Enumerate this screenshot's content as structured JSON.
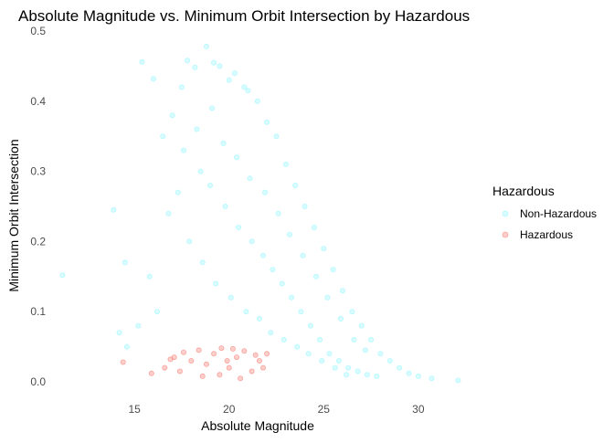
{
  "chart_data": {
    "type": "scatter",
    "title": "Absolute Magnitude vs. Minimum Orbit Intersection by Hazardous",
    "xlabel": "Absolute Magnitude",
    "ylabel": "Minimum Orbit Intersection",
    "xlim": [
      10.6,
      33
    ],
    "ylim": [
      0,
      0.5
    ],
    "x_ticks": [
      15,
      20,
      25,
      30
    ],
    "y_ticks": [
      0.0,
      0.1,
      0.2,
      0.3,
      0.4,
      0.5
    ],
    "x_tick_labels": [
      "15",
      "20",
      "25",
      "30"
    ],
    "y_tick_labels": [
      "0.0",
      "0.1",
      "0.2",
      "0.3",
      "0.4",
      "0.5"
    ],
    "grid": false,
    "point_alpha": 0.35,
    "legend": {
      "title": "Hazardous",
      "position": "right",
      "entries": [
        {
          "label": "Non-Hazardous",
          "color": "#8FF5FF"
        },
        {
          "label": "Hazardous",
          "color": "#F8766D"
        }
      ]
    },
    "series": [
      {
        "name": "Non-Hazardous",
        "color": "#8FF5FF",
        "points": [
          [
            11.2,
            0.152
          ],
          [
            13.9,
            0.245
          ],
          [
            14.5,
            0.17
          ],
          [
            15.4,
            0.456
          ],
          [
            16.0,
            0.432
          ],
          [
            16.5,
            0.35
          ],
          [
            17.0,
            0.38
          ],
          [
            17.5,
            0.42
          ],
          [
            17.8,
            0.458
          ],
          [
            18.2,
            0.448
          ],
          [
            18.8,
            0.478
          ],
          [
            19.2,
            0.455
          ],
          [
            19.5,
            0.45
          ],
          [
            20.0,
            0.43
          ],
          [
            20.3,
            0.44
          ],
          [
            20.8,
            0.42
          ],
          [
            21.0,
            0.415
          ],
          [
            21.5,
            0.4
          ],
          [
            22.0,
            0.37
          ],
          [
            22.5,
            0.35
          ],
          [
            23.0,
            0.31
          ],
          [
            23.5,
            0.28
          ],
          [
            24.0,
            0.25
          ],
          [
            24.5,
            0.22
          ],
          [
            25.0,
            0.19
          ],
          [
            25.5,
            0.16
          ],
          [
            26.0,
            0.13
          ],
          [
            26.5,
            0.1
          ],
          [
            27.0,
            0.08
          ],
          [
            27.5,
            0.06
          ],
          [
            28.0,
            0.04
          ],
          [
            28.5,
            0.03
          ],
          [
            29.0,
            0.02
          ],
          [
            29.5,
            0.012
          ],
          [
            30.0,
            0.008
          ],
          [
            30.7,
            0.005
          ],
          [
            32.1,
            0.002
          ],
          [
            18.5,
            0.3
          ],
          [
            19.0,
            0.28
          ],
          [
            19.8,
            0.25
          ],
          [
            20.5,
            0.22
          ],
          [
            21.2,
            0.2
          ],
          [
            21.8,
            0.18
          ],
          [
            22.3,
            0.16
          ],
          [
            22.8,
            0.14
          ],
          [
            23.3,
            0.12
          ],
          [
            23.8,
            0.1
          ],
          [
            24.3,
            0.08
          ],
          [
            24.8,
            0.06
          ],
          [
            25.3,
            0.04
          ],
          [
            25.8,
            0.03
          ],
          [
            26.3,
            0.02
          ],
          [
            26.8,
            0.015
          ],
          [
            27.3,
            0.01
          ],
          [
            27.8,
            0.008
          ],
          [
            16.8,
            0.24
          ],
          [
            17.3,
            0.27
          ],
          [
            17.9,
            0.2
          ],
          [
            18.6,
            0.17
          ],
          [
            19.3,
            0.14
          ],
          [
            20.1,
            0.12
          ],
          [
            20.9,
            0.1
          ],
          [
            21.6,
            0.09
          ],
          [
            22.2,
            0.07
          ],
          [
            22.9,
            0.06
          ],
          [
            23.6,
            0.05
          ],
          [
            24.2,
            0.04
          ],
          [
            24.9,
            0.03
          ],
          [
            25.6,
            0.02
          ],
          [
            26.2,
            0.01
          ],
          [
            15.8,
            0.15
          ],
          [
            16.2,
            0.1
          ],
          [
            15.2,
            0.08
          ],
          [
            14.6,
            0.05
          ],
          [
            14.2,
            0.07
          ],
          [
            17.6,
            0.33
          ],
          [
            18.3,
            0.36
          ],
          [
            19.1,
            0.39
          ],
          [
            19.7,
            0.34
          ],
          [
            20.4,
            0.32
          ],
          [
            21.1,
            0.29
          ],
          [
            21.9,
            0.27
          ],
          [
            22.6,
            0.24
          ],
          [
            23.2,
            0.21
          ],
          [
            23.9,
            0.18
          ],
          [
            24.6,
            0.15
          ],
          [
            25.2,
            0.12
          ],
          [
            25.9,
            0.09
          ],
          [
            26.6,
            0.06
          ],
          [
            27.2,
            0.045
          ]
        ]
      },
      {
        "name": "Hazardous",
        "color": "#F8766D",
        "points": [
          [
            14.4,
            0.028
          ],
          [
            15.9,
            0.012
          ],
          [
            16.6,
            0.02
          ],
          [
            17.1,
            0.035
          ],
          [
            17.6,
            0.042
          ],
          [
            18.0,
            0.03
          ],
          [
            18.4,
            0.045
          ],
          [
            18.8,
            0.025
          ],
          [
            19.2,
            0.04
          ],
          [
            19.6,
            0.048
          ],
          [
            20.0,
            0.02
          ],
          [
            20.4,
            0.035
          ],
          [
            20.8,
            0.044
          ],
          [
            21.2,
            0.015
          ],
          [
            21.6,
            0.03
          ],
          [
            22.0,
            0.04
          ],
          [
            19.5,
            0.01
          ],
          [
            18.6,
            0.008
          ],
          [
            20.6,
            0.005
          ],
          [
            21.8,
            0.02
          ],
          [
            17.4,
            0.015
          ],
          [
            16.9,
            0.032
          ],
          [
            19.9,
            0.03
          ],
          [
            20.2,
            0.047
          ],
          [
            21.4,
            0.038
          ]
        ]
      }
    ]
  }
}
